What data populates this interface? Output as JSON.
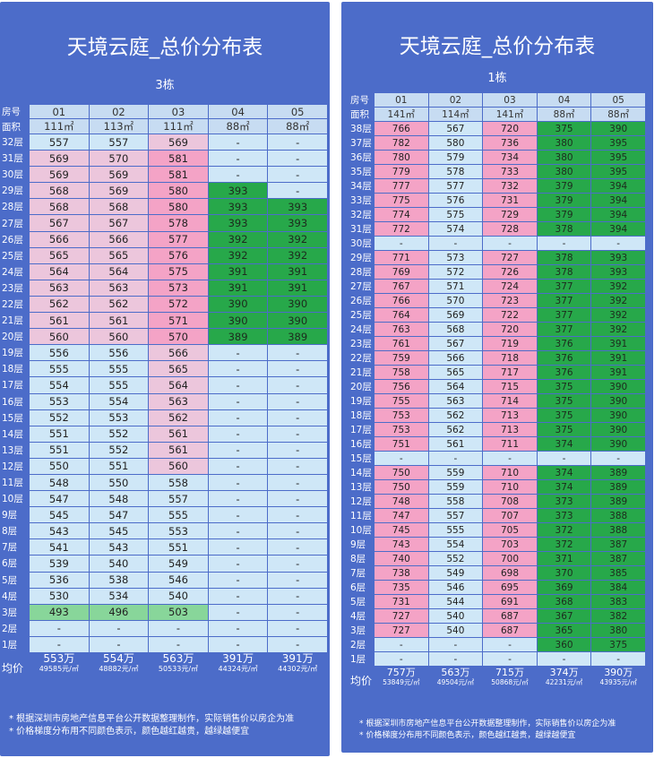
{
  "left": {
    "title": "天境云庭_总价分布表",
    "subtitle": "3栋",
    "header_label_unit": "房号",
    "header_label_area": "面积",
    "units": [
      "01",
      "02",
      "03",
      "04",
      "05"
    ],
    "areas": [
      "111㎡",
      "113㎡",
      "111㎡",
      "88㎡",
      "88㎡"
    ],
    "rows": [
      {
        "floor": "32层",
        "cells": [
          "557",
          "557",
          "569",
          "-",
          "-"
        ],
        "tones": [
          "b",
          "b",
          "p",
          "b",
          "b"
        ]
      },
      {
        "floor": "31层",
        "cells": [
          "569",
          "570",
          "581",
          "-",
          "-"
        ],
        "tones": [
          "p",
          "p",
          "p2",
          "b",
          "b"
        ]
      },
      {
        "floor": "30层",
        "cells": [
          "569",
          "569",
          "581",
          "-",
          "-"
        ],
        "tones": [
          "p",
          "p",
          "p2",
          "b",
          "b"
        ]
      },
      {
        "floor": "29层",
        "cells": [
          "568",
          "569",
          "580",
          "393",
          "-"
        ],
        "tones": [
          "p",
          "p",
          "p2",
          "g",
          "b"
        ]
      },
      {
        "floor": "28层",
        "cells": [
          "568",
          "568",
          "580",
          "393",
          "393"
        ],
        "tones": [
          "p",
          "p",
          "p2",
          "g",
          "g"
        ]
      },
      {
        "floor": "27层",
        "cells": [
          "567",
          "567",
          "578",
          "393",
          "393"
        ],
        "tones": [
          "p",
          "p",
          "p2",
          "g",
          "g"
        ]
      },
      {
        "floor": "26层",
        "cells": [
          "566",
          "566",
          "577",
          "392",
          "392"
        ],
        "tones": [
          "p",
          "p",
          "p2",
          "g",
          "g"
        ]
      },
      {
        "floor": "25层",
        "cells": [
          "565",
          "565",
          "576",
          "392",
          "392"
        ],
        "tones": [
          "p",
          "p",
          "p2",
          "g",
          "g"
        ]
      },
      {
        "floor": "24层",
        "cells": [
          "564",
          "564",
          "575",
          "391",
          "391"
        ],
        "tones": [
          "p",
          "p",
          "p2",
          "g",
          "g"
        ]
      },
      {
        "floor": "23层",
        "cells": [
          "563",
          "563",
          "573",
          "391",
          "391"
        ],
        "tones": [
          "p",
          "p",
          "p2",
          "g",
          "g"
        ]
      },
      {
        "floor": "22层",
        "cells": [
          "562",
          "562",
          "572",
          "390",
          "390"
        ],
        "tones": [
          "p",
          "p",
          "p2",
          "g",
          "g"
        ]
      },
      {
        "floor": "21层",
        "cells": [
          "561",
          "561",
          "571",
          "390",
          "390"
        ],
        "tones": [
          "p",
          "p",
          "p2",
          "g",
          "g"
        ]
      },
      {
        "floor": "20层",
        "cells": [
          "560",
          "560",
          "570",
          "389",
          "389"
        ],
        "tones": [
          "p",
          "p",
          "p2",
          "g",
          "g"
        ]
      },
      {
        "floor": "19层",
        "cells": [
          "556",
          "556",
          "566",
          "-",
          "-"
        ],
        "tones": [
          "b",
          "b",
          "p",
          "b",
          "b"
        ]
      },
      {
        "floor": "18层",
        "cells": [
          "555",
          "555",
          "565",
          "-",
          "-"
        ],
        "tones": [
          "b",
          "b",
          "p",
          "b",
          "b"
        ]
      },
      {
        "floor": "17层",
        "cells": [
          "554",
          "555",
          "564",
          "-",
          "-"
        ],
        "tones": [
          "b",
          "b",
          "p",
          "b",
          "b"
        ]
      },
      {
        "floor": "16层",
        "cells": [
          "553",
          "554",
          "563",
          "-",
          "-"
        ],
        "tones": [
          "b",
          "b",
          "p",
          "b",
          "b"
        ]
      },
      {
        "floor": "15层",
        "cells": [
          "552",
          "553",
          "562",
          "-",
          "-"
        ],
        "tones": [
          "b",
          "b",
          "p",
          "b",
          "b"
        ]
      },
      {
        "floor": "14层",
        "cells": [
          "551",
          "552",
          "561",
          "-",
          "-"
        ],
        "tones": [
          "b",
          "b",
          "p",
          "b",
          "b"
        ]
      },
      {
        "floor": "13层",
        "cells": [
          "551",
          "552",
          "561",
          "-",
          "-"
        ],
        "tones": [
          "b",
          "b",
          "p",
          "b",
          "b"
        ]
      },
      {
        "floor": "12层",
        "cells": [
          "550",
          "551",
          "560",
          "-",
          "-"
        ],
        "tones": [
          "b",
          "b",
          "p",
          "b",
          "b"
        ]
      },
      {
        "floor": "11层",
        "cells": [
          "548",
          "550",
          "558",
          "-",
          "-"
        ],
        "tones": [
          "b",
          "b",
          "b",
          "b",
          "b"
        ]
      },
      {
        "floor": "10层",
        "cells": [
          "547",
          "548",
          "557",
          "-",
          "-"
        ],
        "tones": [
          "b",
          "b",
          "b",
          "b",
          "b"
        ]
      },
      {
        "floor": "9层",
        "cells": [
          "545",
          "547",
          "555",
          "-",
          "-"
        ],
        "tones": [
          "b",
          "b",
          "b",
          "b",
          "b"
        ]
      },
      {
        "floor": "8层",
        "cells": [
          "543",
          "545",
          "553",
          "-",
          "-"
        ],
        "tones": [
          "b",
          "b",
          "b",
          "b",
          "b"
        ]
      },
      {
        "floor": "7层",
        "cells": [
          "541",
          "543",
          "551",
          "-",
          "-"
        ],
        "tones": [
          "b",
          "b",
          "b",
          "b",
          "b"
        ]
      },
      {
        "floor": "6层",
        "cells": [
          "539",
          "540",
          "549",
          "-",
          "-"
        ],
        "tones": [
          "b",
          "b",
          "b",
          "b",
          "b"
        ]
      },
      {
        "floor": "5层",
        "cells": [
          "536",
          "538",
          "546",
          "-",
          "-"
        ],
        "tones": [
          "b",
          "b",
          "b",
          "b",
          "b"
        ]
      },
      {
        "floor": "4层",
        "cells": [
          "530",
          "534",
          "540",
          "-",
          "-"
        ],
        "tones": [
          "b",
          "b",
          "b",
          "b",
          "b"
        ]
      },
      {
        "floor": "3层",
        "cells": [
          "493",
          "496",
          "503",
          "-",
          "-"
        ],
        "tones": [
          "lg",
          "lg",
          "lg",
          "b",
          "b"
        ]
      },
      {
        "floor": "2层",
        "cells": [
          "-",
          "-",
          "-",
          "-",
          "-"
        ],
        "tones": [
          "b",
          "b",
          "b",
          "b",
          "b"
        ]
      },
      {
        "floor": "1层",
        "cells": [
          "-",
          "-",
          "-",
          "-",
          "-"
        ],
        "tones": [
          "b",
          "b",
          "b",
          "b",
          "b"
        ]
      }
    ],
    "avg_label": "均价",
    "avg_prices": [
      "553万",
      "554万",
      "563万",
      "391万",
      "391万"
    ],
    "avg_units": [
      "49585元/㎡",
      "48882元/㎡",
      "50533元/㎡",
      "44324元/㎡",
      "44302元/㎡"
    ],
    "notes": [
      "* 根据深圳市房地产信息平台公开数据整理制作，实际销售价以房企为准",
      "* 价格梯度分布用不同颜色表示，颜色越红越贵，越绿越便宜"
    ]
  },
  "right": {
    "title": "天境云庭_总价分布表",
    "subtitle": "1栋",
    "header_label_unit": "房号",
    "header_label_area": "面积",
    "units": [
      "01",
      "02",
      "03",
      "04",
      "05"
    ],
    "areas": [
      "141㎡",
      "114㎡",
      "141㎡",
      "88㎡",
      "88㎡"
    ],
    "rows": [
      {
        "floor": "38层",
        "cells": [
          "766",
          "567",
          "720",
          "375",
          "390"
        ],
        "tones": [
          "p2",
          "b",
          "p2",
          "g",
          "g"
        ]
      },
      {
        "floor": "37层",
        "cells": [
          "782",
          "580",
          "736",
          "380",
          "395"
        ],
        "tones": [
          "p2",
          "b",
          "p2",
          "g",
          "g"
        ]
      },
      {
        "floor": "36层",
        "cells": [
          "780",
          "579",
          "734",
          "380",
          "395"
        ],
        "tones": [
          "p2",
          "b",
          "p2",
          "g",
          "g"
        ]
      },
      {
        "floor": "35层",
        "cells": [
          "779",
          "578",
          "733",
          "380",
          "395"
        ],
        "tones": [
          "p2",
          "b",
          "p2",
          "g",
          "g"
        ]
      },
      {
        "floor": "34层",
        "cells": [
          "777",
          "577",
          "732",
          "379",
          "394"
        ],
        "tones": [
          "p2",
          "b",
          "p2",
          "g",
          "g"
        ]
      },
      {
        "floor": "33层",
        "cells": [
          "775",
          "576",
          "731",
          "379",
          "394"
        ],
        "tones": [
          "p2",
          "b",
          "p2",
          "g",
          "g"
        ]
      },
      {
        "floor": "32层",
        "cells": [
          "774",
          "575",
          "729",
          "379",
          "394"
        ],
        "tones": [
          "p2",
          "b",
          "p2",
          "g",
          "g"
        ]
      },
      {
        "floor": "31层",
        "cells": [
          "772",
          "574",
          "728",
          "378",
          "394"
        ],
        "tones": [
          "p2",
          "b",
          "p2",
          "g",
          "g"
        ]
      },
      {
        "floor": "30层",
        "cells": [
          "-",
          "-",
          "-",
          "-",
          "-"
        ],
        "tones": [
          "b",
          "b",
          "b",
          "b",
          "b"
        ]
      },
      {
        "floor": "29层",
        "cells": [
          "771",
          "573",
          "727",
          "378",
          "393"
        ],
        "tones": [
          "p2",
          "b",
          "p2",
          "g",
          "g"
        ]
      },
      {
        "floor": "28层",
        "cells": [
          "769",
          "572",
          "726",
          "378",
          "393"
        ],
        "tones": [
          "p2",
          "b",
          "p2",
          "g",
          "g"
        ]
      },
      {
        "floor": "27层",
        "cells": [
          "767",
          "571",
          "724",
          "377",
          "392"
        ],
        "tones": [
          "p2",
          "b",
          "p2",
          "g",
          "g"
        ]
      },
      {
        "floor": "26层",
        "cells": [
          "766",
          "570",
          "723",
          "377",
          "392"
        ],
        "tones": [
          "p2",
          "b",
          "p2",
          "g",
          "g"
        ]
      },
      {
        "floor": "25层",
        "cells": [
          "764",
          "569",
          "722",
          "377",
          "392"
        ],
        "tones": [
          "p2",
          "b",
          "p2",
          "g",
          "g"
        ]
      },
      {
        "floor": "24层",
        "cells": [
          "763",
          "568",
          "720",
          "377",
          "392"
        ],
        "tones": [
          "p2",
          "b",
          "p2",
          "g",
          "g"
        ]
      },
      {
        "floor": "23层",
        "cells": [
          "761",
          "567",
          "719",
          "376",
          "391"
        ],
        "tones": [
          "p2",
          "b",
          "p2",
          "g",
          "g"
        ]
      },
      {
        "floor": "22层",
        "cells": [
          "759",
          "566",
          "718",
          "376",
          "391"
        ],
        "tones": [
          "p2",
          "b",
          "p2",
          "g",
          "g"
        ]
      },
      {
        "floor": "21层",
        "cells": [
          "758",
          "565",
          "717",
          "376",
          "391"
        ],
        "tones": [
          "p2",
          "b",
          "p2",
          "g",
          "g"
        ]
      },
      {
        "floor": "20层",
        "cells": [
          "756",
          "564",
          "715",
          "375",
          "390"
        ],
        "tones": [
          "p2",
          "b",
          "p2",
          "g",
          "g"
        ]
      },
      {
        "floor": "19层",
        "cells": [
          "755",
          "563",
          "714",
          "375",
          "390"
        ],
        "tones": [
          "p2",
          "b",
          "p2",
          "g",
          "g"
        ]
      },
      {
        "floor": "18层",
        "cells": [
          "753",
          "562",
          "713",
          "375",
          "390"
        ],
        "tones": [
          "p2",
          "b",
          "p2",
          "g",
          "g"
        ]
      },
      {
        "floor": "17层",
        "cells": [
          "753",
          "562",
          "713",
          "375",
          "390"
        ],
        "tones": [
          "p2",
          "b",
          "p2",
          "g",
          "g"
        ]
      },
      {
        "floor": "16层",
        "cells": [
          "751",
          "561",
          "711",
          "374",
          "390"
        ],
        "tones": [
          "p2",
          "b",
          "p2",
          "g",
          "g"
        ]
      },
      {
        "floor": "15层",
        "cells": [
          "-",
          "-",
          "-",
          "-",
          "-"
        ],
        "tones": [
          "b",
          "b",
          "b",
          "b",
          "b"
        ]
      },
      {
        "floor": "14层",
        "cells": [
          "750",
          "559",
          "710",
          "374",
          "389"
        ],
        "tones": [
          "p2",
          "b",
          "p2",
          "g",
          "g"
        ]
      },
      {
        "floor": "13层",
        "cells": [
          "750",
          "559",
          "710",
          "374",
          "389"
        ],
        "tones": [
          "p2",
          "b",
          "p2",
          "g",
          "g"
        ]
      },
      {
        "floor": "12层",
        "cells": [
          "748",
          "558",
          "708",
          "373",
          "389"
        ],
        "tones": [
          "p2",
          "b",
          "p2",
          "g",
          "g"
        ]
      },
      {
        "floor": "11层",
        "cells": [
          "747",
          "557",
          "707",
          "373",
          "388"
        ],
        "tones": [
          "p2",
          "b",
          "p2",
          "g",
          "g"
        ]
      },
      {
        "floor": "10层",
        "cells": [
          "745",
          "555",
          "705",
          "372",
          "388"
        ],
        "tones": [
          "p2",
          "b",
          "p2",
          "g",
          "g"
        ]
      },
      {
        "floor": "9层",
        "cells": [
          "743",
          "554",
          "703",
          "372",
          "387"
        ],
        "tones": [
          "p2",
          "b",
          "p2",
          "g",
          "g"
        ]
      },
      {
        "floor": "8层",
        "cells": [
          "740",
          "552",
          "700",
          "371",
          "387"
        ],
        "tones": [
          "p2",
          "b",
          "p2",
          "g",
          "g"
        ]
      },
      {
        "floor": "7层",
        "cells": [
          "738",
          "549",
          "698",
          "370",
          "385"
        ],
        "tones": [
          "p2",
          "b",
          "p2",
          "g",
          "g"
        ]
      },
      {
        "floor": "6层",
        "cells": [
          "735",
          "546",
          "695",
          "369",
          "384"
        ],
        "tones": [
          "p2",
          "b",
          "p2",
          "g",
          "g"
        ]
      },
      {
        "floor": "5层",
        "cells": [
          "731",
          "544",
          "691",
          "368",
          "383"
        ],
        "tones": [
          "p2",
          "b",
          "p2",
          "g",
          "g"
        ]
      },
      {
        "floor": "4层",
        "cells": [
          "727",
          "540",
          "687",
          "367",
          "382"
        ],
        "tones": [
          "p2",
          "b",
          "p2",
          "g",
          "g"
        ]
      },
      {
        "floor": "3层",
        "cells": [
          "727",
          "540",
          "687",
          "365",
          "380"
        ],
        "tones": [
          "p2",
          "b",
          "p2",
          "g",
          "g"
        ]
      },
      {
        "floor": "2层",
        "cells": [
          "-",
          "-",
          "-",
          "360",
          "375"
        ],
        "tones": [
          "b",
          "b",
          "b",
          "g",
          "g"
        ]
      },
      {
        "floor": "1层",
        "cells": [
          "-",
          "-",
          "-",
          "-",
          "-"
        ],
        "tones": [
          "b",
          "b",
          "b",
          "b",
          "b"
        ]
      }
    ],
    "avg_label": "均价",
    "avg_prices": [
      "757万",
      "563万",
      "715万",
      "374万",
      "390万"
    ],
    "avg_units": [
      "53849元/㎡",
      "49504元/㎡",
      "50868元/㎡",
      "42231元/㎡",
      "43935元/㎡"
    ],
    "notes": [
      "* 根据深圳市房地产信息平台公开数据整理制作，实际销售价以房企为准",
      "* 价格梯度分布用不同颜色表示，颜色越红越贵，越绿越便宜"
    ]
  },
  "colors": {
    "panel_bg": "#4c6cc9",
    "expensive_pink": "#f4a3c6",
    "mid_pink": "#ecc6dc",
    "cheap_green": "#27a84a",
    "light_green": "#88d69a",
    "neutral_blue": "#cfe7f7"
  }
}
